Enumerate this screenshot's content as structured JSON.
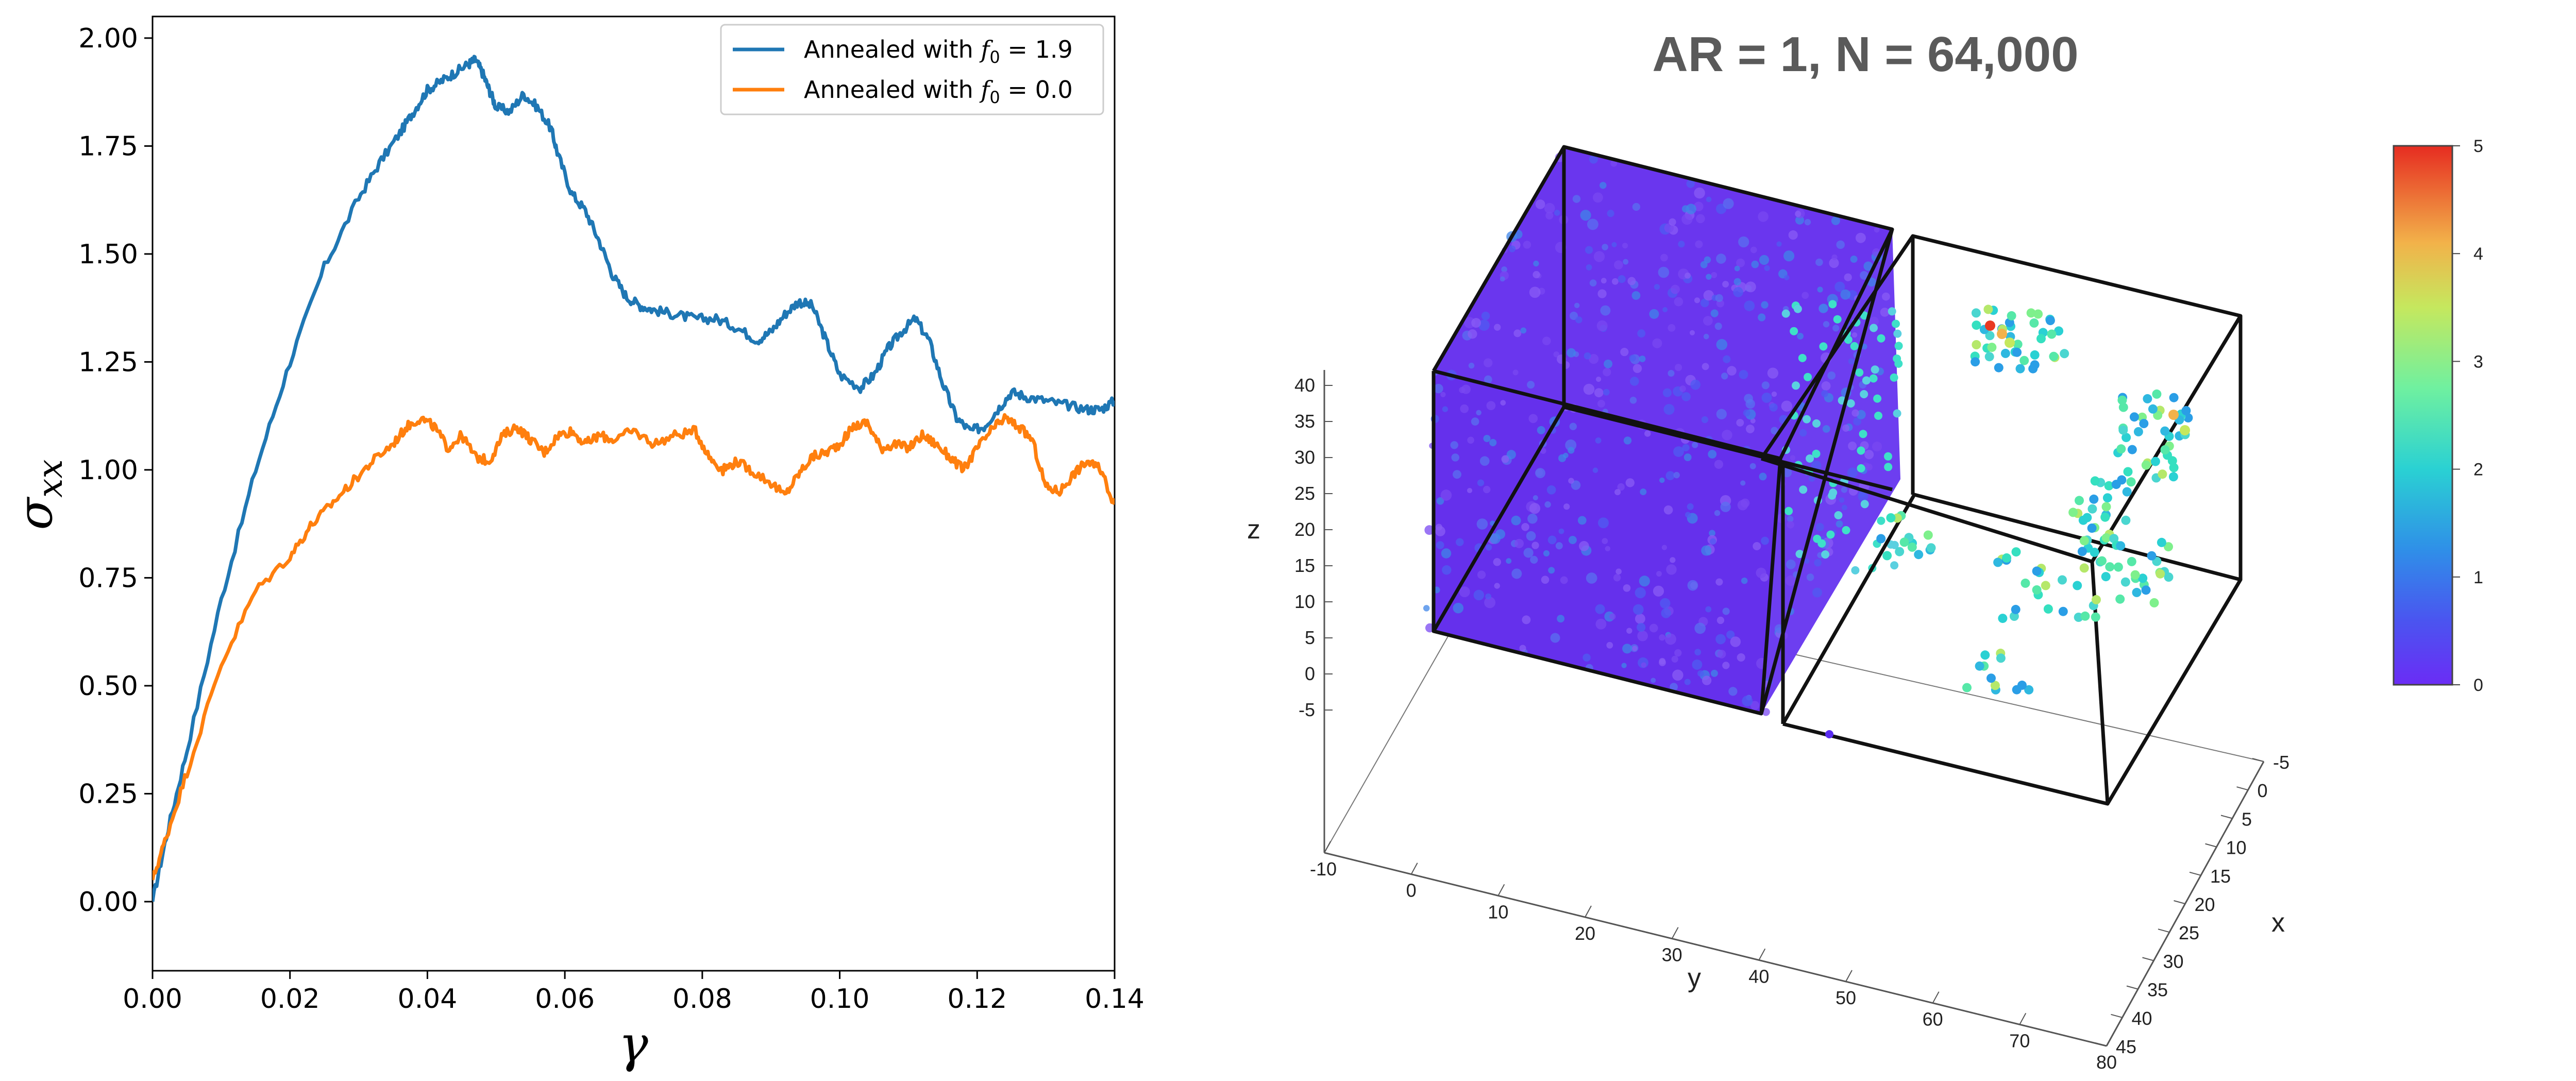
{
  "chart_data": [
    {
      "type": "line",
      "title": "",
      "xlabel": "γ",
      "ylabel": "σxx",
      "xlim": [
        0.0,
        0.14
      ],
      "ylim": [
        -0.16,
        2.05
      ],
      "xticks": [
        "0.00",
        "0.02",
        "0.04",
        "0.06",
        "0.08",
        "0.10",
        "0.12",
        "0.14"
      ],
      "yticks": [
        "0.00",
        "0.25",
        "0.50",
        "0.75",
        "1.00",
        "1.25",
        "1.50",
        "1.75",
        "2.00"
      ],
      "legend_position": "top-right",
      "series": [
        {
          "name": "Annealed with f0 = 1.9",
          "legend_prefix": "Annealed with ",
          "legend_var": "f",
          "legend_sub": "0",
          "legend_value": " = 1.9",
          "color": "#1f77b4",
          "x": [
            0.0,
            0.002,
            0.005,
            0.01,
            0.015,
            0.02,
            0.025,
            0.03,
            0.033,
            0.036,
            0.038,
            0.04,
            0.042,
            0.044,
            0.046,
            0.047,
            0.048,
            0.049,
            0.05,
            0.052,
            0.054,
            0.056,
            0.058,
            0.059,
            0.061,
            0.063,
            0.065,
            0.067,
            0.069,
            0.071,
            0.073,
            0.076,
            0.079,
            0.082,
            0.085,
            0.088,
            0.09,
            0.092,
            0.094,
            0.096,
            0.098,
            0.1,
            0.103,
            0.105,
            0.107,
            0.109,
            0.111,
            0.113,
            0.115,
            0.117,
            0.119,
            0.121,
            0.123,
            0.125,
            0.127,
            0.13,
            0.133,
            0.136,
            0.138,
            0.14
          ],
          "y": [
            0.0,
            0.15,
            0.35,
            0.7,
            1.0,
            1.25,
            1.47,
            1.63,
            1.71,
            1.78,
            1.83,
            1.88,
            1.9,
            1.92,
            1.94,
            1.95,
            1.92,
            1.88,
            1.84,
            1.83,
            1.87,
            1.84,
            1.79,
            1.73,
            1.64,
            1.6,
            1.53,
            1.45,
            1.4,
            1.38,
            1.37,
            1.36,
            1.35,
            1.35,
            1.33,
            1.3,
            1.32,
            1.36,
            1.39,
            1.38,
            1.3,
            1.22,
            1.19,
            1.22,
            1.28,
            1.32,
            1.35,
            1.3,
            1.2,
            1.12,
            1.09,
            1.1,
            1.14,
            1.18,
            1.17,
            1.16,
            1.15,
            1.14,
            1.14,
            1.16
          ]
        },
        {
          "name": "Annealed with f0 = 0.0",
          "legend_prefix": "Annealed with ",
          "legend_var": "f",
          "legend_sub": "0",
          "legend_value": " = 0.0",
          "color": "#ff7f0e",
          "x": [
            0.0,
            0.002,
            0.005,
            0.01,
            0.015,
            0.02,
            0.023,
            0.026,
            0.029,
            0.032,
            0.035,
            0.037,
            0.039,
            0.041,
            0.043,
            0.045,
            0.047,
            0.049,
            0.051,
            0.053,
            0.055,
            0.057,
            0.059,
            0.061,
            0.063,
            0.065,
            0.067,
            0.07,
            0.073,
            0.076,
            0.079,
            0.081,
            0.083,
            0.085,
            0.087,
            0.09,
            0.092,
            0.094,
            0.096,
            0.098,
            0.1,
            0.102,
            0.104,
            0.106,
            0.108,
            0.11,
            0.112,
            0.114,
            0.116,
            0.118,
            0.12,
            0.122,
            0.124,
            0.126,
            0.128,
            0.13,
            0.132,
            0.134,
            0.136,
            0.138,
            0.14
          ],
          "y": [
            0.05,
            0.15,
            0.3,
            0.55,
            0.72,
            0.8,
            0.87,
            0.92,
            0.97,
            1.02,
            1.06,
            1.1,
            1.12,
            1.1,
            1.05,
            1.08,
            1.03,
            1.02,
            1.08,
            1.1,
            1.07,
            1.04,
            1.08,
            1.09,
            1.06,
            1.08,
            1.07,
            1.09,
            1.06,
            1.08,
            1.09,
            1.03,
            1.0,
            1.02,
            1.0,
            0.97,
            0.94,
            0.99,
            1.03,
            1.04,
            1.06,
            1.1,
            1.11,
            1.05,
            1.06,
            1.05,
            1.08,
            1.06,
            1.03,
            1.0,
            1.05,
            1.09,
            1.12,
            1.1,
            1.07,
            0.96,
            0.95,
            0.99,
            1.02,
            1.0,
            0.92
          ]
        }
      ]
    },
    {
      "type": "scatter",
      "title": "AR = 1, N = 64,000",
      "xlabel": "x",
      "ylabel": "y",
      "zlabel": "z",
      "x_ticks": [
        "-5",
        "0",
        "5",
        "10",
        "15",
        "20",
        "25",
        "30",
        "35",
        "40",
        "45"
      ],
      "y_ticks": [
        "-10",
        "0",
        "10",
        "20",
        "30",
        "40",
        "50",
        "60",
        "70",
        "80"
      ],
      "z_ticks": [
        "40",
        "35",
        "30",
        "25",
        "20",
        "15",
        "10",
        "5",
        "0",
        "-5"
      ],
      "colorbar": {
        "min": 0,
        "max": 5,
        "ticks": [
          "5",
          "4",
          "3",
          "2",
          "1",
          "0"
        ],
        "colormap": "rainbow"
      },
      "colors": {
        "dense_block": "#6a33f0",
        "low": "#5a2cf0",
        "mid": "#2ad4c8",
        "high": "#e83a22"
      },
      "description": "left box densely filled with particles (value ≈ 0), right box sparsely populated with particles of value ≈ 1.5–4"
    }
  ]
}
